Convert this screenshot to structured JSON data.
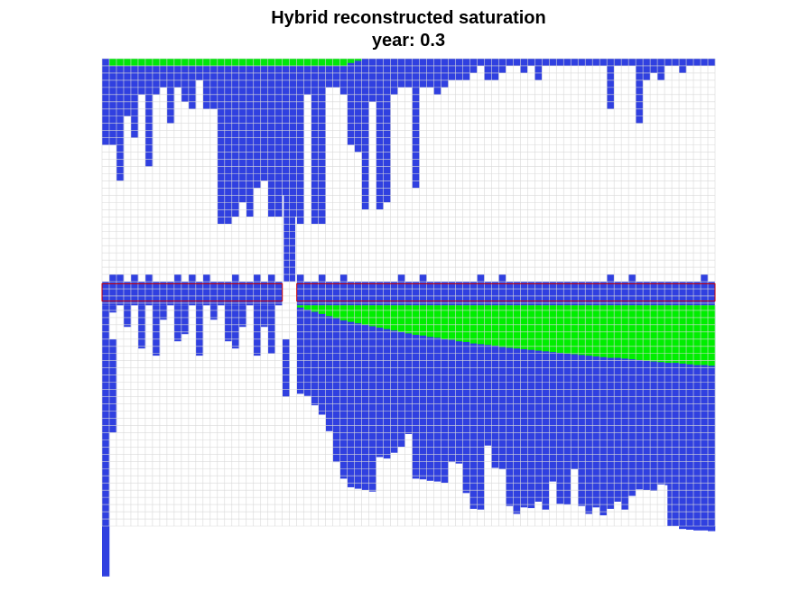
{
  "chart_data": {
    "type": "heatmap",
    "title": "Hybrid reconstructed saturation",
    "subtitle": "year: 0.3",
    "xlabel": "",
    "ylabel": "",
    "grid": true,
    "grid_size": {
      "nx": 85,
      "nz": 65
    },
    "colors": {
      "background": "#ffffff",
      "grid_line": "#d9d9d9",
      "water": "#3040e0",
      "co2": "#00ee00",
      "well_box": "#cc0000"
    },
    "upper_blue_depth": [
      12,
      12,
      17,
      8,
      11,
      5,
      15,
      5,
      4,
      9,
      4,
      6,
      7,
      3,
      7,
      7,
      23,
      23,
      22,
      20,
      22,
      18,
      17,
      22,
      22,
      19,
      22,
      23,
      5,
      23,
      23,
      4,
      4,
      5,
      12,
      13,
      21,
      6,
      21,
      20,
      5,
      4,
      4,
      18,
      4,
      4,
      5,
      4,
      3,
      3,
      3,
      2,
      1,
      3,
      3,
      2,
      1,
      1,
      2,
      1,
      3,
      1,
      1,
      1,
      1,
      1,
      1,
      1,
      1,
      1,
      7,
      1,
      1,
      1,
      9,
      3,
      2,
      3,
      1,
      1,
      2,
      1,
      1,
      1,
      1
    ],
    "lower_blue_depth": [
      0,
      1,
      3,
      3,
      3,
      6,
      6,
      7,
      2,
      2,
      5,
      4,
      1,
      7,
      5,
      2,
      3,
      5,
      6,
      3,
      6,
      7,
      3,
      5,
      6,
      1,
      2,
      1,
      2,
      3,
      5,
      3,
      5,
      3,
      1,
      5,
      4,
      3,
      5,
      3,
      4,
      1,
      1,
      1,
      3,
      3,
      1,
      3,
      2,
      1,
      1,
      1,
      4,
      1,
      3,
      4,
      1,
      4,
      2,
      1,
      3,
      3,
      2,
      4,
      4,
      4,
      2,
      1,
      5,
      4,
      2,
      3,
      4,
      2,
      2,
      1,
      4,
      1,
      3,
      1,
      1,
      2,
      2,
      1,
      1
    ],
    "co2_top": {
      "thickness": [
        1,
        1,
        1,
        1,
        1,
        1,
        1,
        1,
        1,
        1,
        1,
        1,
        1,
        1,
        1,
        1,
        1,
        1,
        1,
        1,
        1,
        1,
        1,
        1,
        1,
        1,
        1,
        1,
        1,
        1,
        1,
        1,
        1,
        0.6,
        0.3
      ],
      "start_col": 1
    },
    "co2_wedge": {
      "start_col": 27,
      "thickness": [
        0.3,
        0.6,
        0.9,
        1.2,
        1.5,
        1.8,
        2.1,
        2.3,
        2.5,
        2.7,
        2.9,
        3.1,
        3.3,
        3.5,
        3.7,
        3.9,
        4.1,
        4.2,
        4.4,
        4.5,
        4.7,
        4.8,
        5.0,
        5.1,
        5.3,
        5.4,
        5.5,
        5.6,
        5.8,
        5.9,
        6.0,
        6.1,
        6.2,
        6.3,
        6.4,
        6.5,
        6.6,
        6.7,
        6.8,
        6.9,
        7.0,
        7.1,
        7.2,
        7.3,
        7.3,
        7.4,
        7.5,
        7.6,
        7.7,
        7.8,
        7.9,
        8.0,
        8.0,
        8.1,
        8.2,
        8.3,
        8.3,
        8.4
      ]
    },
    "lower_columns_depth": [
      33,
      13,
      0,
      0,
      0,
      0,
      0,
      0,
      0,
      0,
      0,
      0,
      0,
      0,
      0,
      0,
      0,
      0,
      0,
      0,
      0,
      0,
      0,
      2,
      0,
      8,
      0,
      0,
      0,
      0,
      0,
      0,
      0,
      0,
      0,
      0,
      0,
      0,
      0,
      0,
      0,
      0,
      0,
      0,
      0,
      0,
      0,
      0,
      0,
      0,
      0,
      0,
      0,
      0,
      0,
      0,
      0,
      0,
      0,
      0,
      0,
      0,
      0,
      0,
      0,
      0,
      0,
      0,
      0,
      0,
      0,
      0,
      0,
      0,
      0,
      0,
      0,
      0,
      0,
      0,
      0,
      0,
      0,
      0,
      0
    ],
    "wells": [
      {
        "col_start": 0,
        "col_end": 25
      },
      {
        "col_start": 27,
        "col_end": 85
      }
    ]
  }
}
